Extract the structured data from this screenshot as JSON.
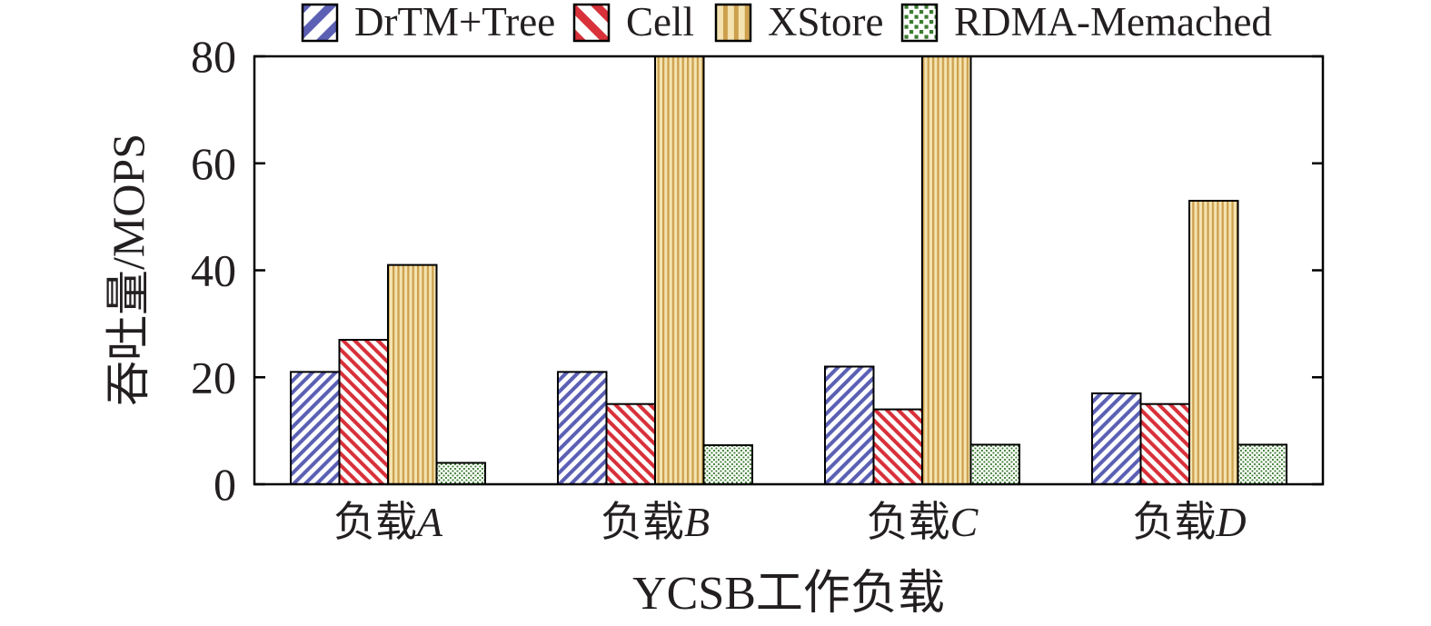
{
  "chart_data": {
    "type": "bar",
    "xlabel": "YCSB工作负载",
    "ylabel": "吞吐量/MOPS",
    "categories": [
      "负载A",
      "负载B",
      "负载C",
      "负载D"
    ],
    "ylim": [
      0,
      80
    ],
    "yticks": [
      0,
      20,
      40,
      60,
      80
    ],
    "grid": false,
    "legend_position": "top",
    "series": [
      {
        "name": "DrTM+Tree",
        "color": "#5b60b4",
        "background_color": "#ffffff",
        "pattern": "diagonal-stripes",
        "values": [
          21,
          21,
          22,
          17
        ]
      },
      {
        "name": "Cell",
        "color": "#d8313a",
        "background_color": "#ffffff",
        "pattern": "back-diagonal-stripes",
        "values": [
          27,
          15,
          14,
          15
        ]
      },
      {
        "name": "XStore",
        "color": "#cda04e",
        "background_color": "#f4e3b0",
        "pattern": "vertical-stripes",
        "values": [
          41,
          80,
          80,
          53
        ]
      },
      {
        "name": "RDMA-Memached",
        "color": "#3a7d2f",
        "background_color": "#ffffff",
        "pattern": "dots",
        "values": [
          4,
          7.3,
          7.4,
          7.4
        ]
      }
    ]
  }
}
